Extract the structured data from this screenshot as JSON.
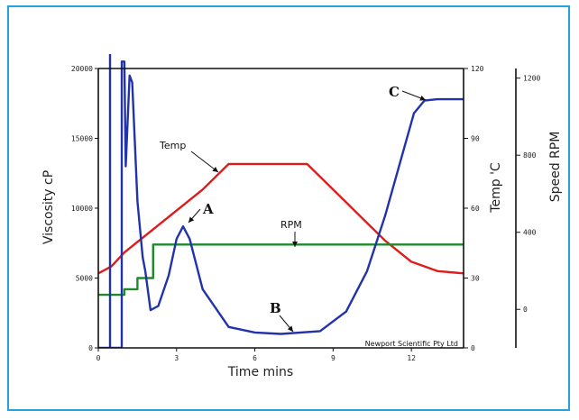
{
  "chart_data": {
    "type": "line",
    "xlabel": "Time mins",
    "ylabel_left": "Viscosity cP",
    "ylabel_right_temp": "Temp 'C",
    "ylabel_right_speed": "Speed RPM",
    "watermark": "Newport Scientific Pty Ltd",
    "xlim": [
      0,
      14
    ],
    "ylim_viscosity": [
      0,
      20000
    ],
    "ylim_temp": [
      0,
      120
    ],
    "ylim_speed": [
      -200,
      1250
    ],
    "x_ticks": [
      "0",
      "3",
      "6",
      "9",
      "12"
    ],
    "viscosity_ticks": [
      "0",
      "5000",
      "10000",
      "15000",
      "20000"
    ],
    "temp_ticks": [
      "0",
      "30",
      "60",
      "90",
      "120"
    ],
    "speed_ticks": [
      "0",
      "400",
      "800",
      "1200"
    ],
    "series": [
      {
        "name": "Temp",
        "color": "#e01b1b",
        "axis": "temp",
        "points": [
          [
            0,
            32
          ],
          [
            0.5,
            35
          ],
          [
            1,
            41
          ],
          [
            2,
            50
          ],
          [
            3,
            59
          ],
          [
            4,
            68
          ],
          [
            5,
            79
          ],
          [
            5.2,
            79
          ],
          [
            8,
            79
          ],
          [
            9,
            68
          ],
          [
            10,
            57
          ],
          [
            11,
            46
          ],
          [
            12,
            37
          ],
          [
            13,
            33
          ],
          [
            14,
            32
          ]
        ]
      },
      {
        "name": "RPM",
        "color": "#1e8b2a",
        "axis": "viscosity",
        "points": [
          [
            0,
            3800
          ],
          [
            1,
            3800
          ],
          [
            1,
            4200
          ],
          [
            1.5,
            4200
          ],
          [
            1.5,
            5000
          ],
          [
            2.1,
            5000
          ],
          [
            2.1,
            7400
          ],
          [
            14,
            7400
          ]
        ]
      },
      {
        "name": "Viscosity",
        "color": "#2233aa",
        "axis": "viscosity",
        "points": [
          [
            0,
            0
          ],
          [
            0.9,
            0
          ],
          [
            0.9,
            20500
          ],
          [
            1.0,
            20500
          ],
          [
            1.05,
            13000
          ],
          [
            1.2,
            19500
          ],
          [
            1.3,
            19000
          ],
          [
            1.5,
            10500
          ],
          [
            1.7,
            6500
          ],
          [
            1.8,
            5500
          ],
          [
            2.0,
            2700
          ],
          [
            2.3,
            3000
          ],
          [
            2.7,
            5200
          ],
          [
            3.0,
            7800
          ],
          [
            3.25,
            8700
          ],
          [
            3.5,
            7800
          ],
          [
            4.0,
            4200
          ],
          [
            5.0,
            1500
          ],
          [
            6.0,
            1100
          ],
          [
            7.0,
            1000
          ],
          [
            8.5,
            1200
          ],
          [
            9.5,
            2600
          ],
          [
            10.3,
            5500
          ],
          [
            11.0,
            9500
          ],
          [
            11.6,
            13500
          ],
          [
            12.1,
            16800
          ],
          [
            12.5,
            17700
          ],
          [
            13.0,
            17800
          ],
          [
            14.0,
            17800
          ]
        ]
      },
      {
        "name": "Viscosity spike",
        "color": "#2233aa",
        "axis": "viscosity",
        "points": [
          [
            0.45,
            0
          ],
          [
            0.45,
            21000
          ]
        ]
      }
    ],
    "annotations": [
      {
        "label": "Temp",
        "style": "small"
      },
      {
        "label": "RPM",
        "style": "small"
      },
      {
        "label": "A",
        "style": "serif"
      },
      {
        "label": "B",
        "style": "serif"
      },
      {
        "label": "C",
        "style": "serif"
      }
    ]
  }
}
